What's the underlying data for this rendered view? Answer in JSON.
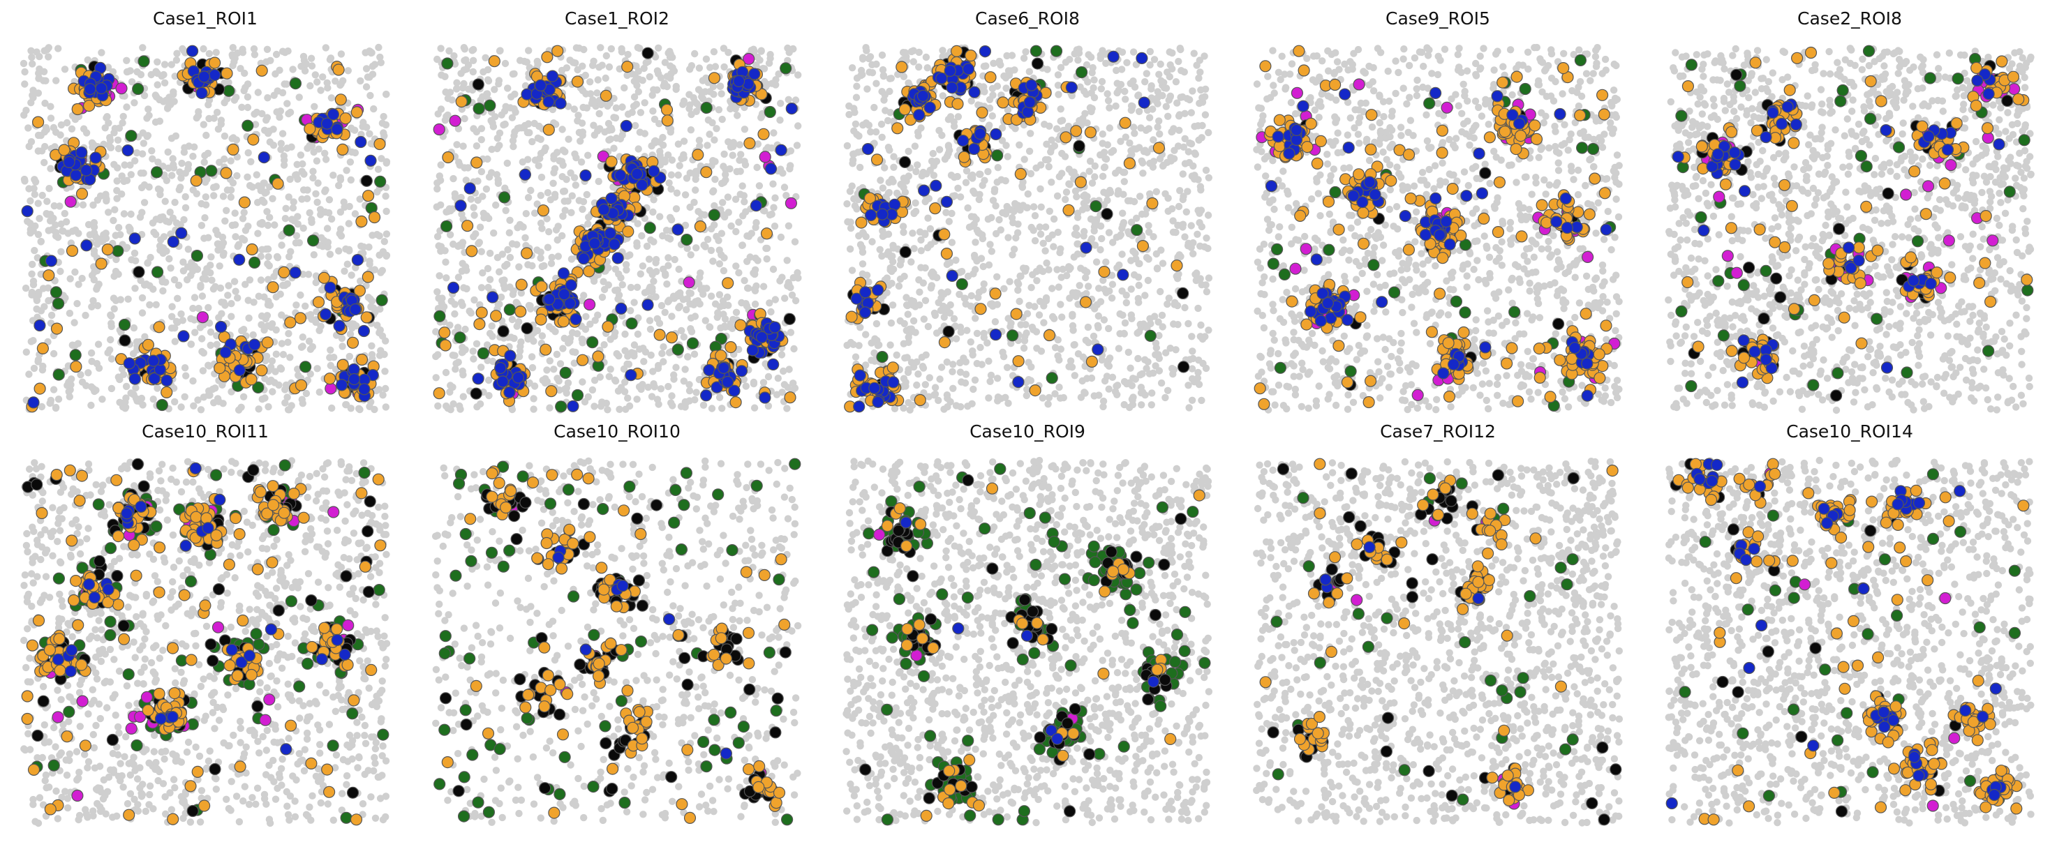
{
  "chart_data": [
    {
      "type": "scatter",
      "title": "Case1_ROI1",
      "seed": 11,
      "density": {
        "bg": 1400,
        "orange": 220,
        "blue": 110,
        "black": 45,
        "green": 40,
        "magenta": 25
      },
      "pattern": "bands-top-bottom"
    },
    {
      "type": "scatter",
      "title": "Case1_ROI2",
      "seed": 23,
      "density": {
        "bg": 1500,
        "orange": 240,
        "blue": 180,
        "black": 70,
        "green": 35,
        "magenta": 25
      },
      "pattern": "diagonal"
    },
    {
      "type": "scatter",
      "title": "Case6_ROI8",
      "seed": 37,
      "density": {
        "bg": 1500,
        "orange": 170,
        "blue": 90,
        "black": 45,
        "green": 15,
        "magenta": 0
      },
      "pattern": "top-left"
    },
    {
      "type": "scatter",
      "title": "Case9_ROI5",
      "seed": 41,
      "density": {
        "bg": 1300,
        "orange": 330,
        "blue": 90,
        "black": 35,
        "green": 30,
        "magenta": 70
      },
      "pattern": "clusters"
    },
    {
      "type": "scatter",
      "title": "Case2_ROI8",
      "seed": 53,
      "density": {
        "bg": 1600,
        "orange": 170,
        "blue": 50,
        "black": 55,
        "green": 40,
        "magenta": 60
      },
      "pattern": "sparse"
    },
    {
      "type": "scatter",
      "title": "Case10_ROI11",
      "seed": 61,
      "density": {
        "bg": 1300,
        "orange": 230,
        "blue": 30,
        "black": 130,
        "green": 160,
        "magenta": 40
      },
      "pattern": "top-dense"
    },
    {
      "type": "scatter",
      "title": "Case10_ROI10",
      "seed": 71,
      "density": {
        "bg": 700,
        "orange": 120,
        "blue": 8,
        "black": 120,
        "green": 70,
        "magenta": 6
      },
      "pattern": "left-diag"
    },
    {
      "type": "scatter",
      "title": "Case10_ROI9",
      "seed": 83,
      "density": {
        "bg": 1500,
        "orange": 40,
        "blue": 6,
        "black": 90,
        "green": 220,
        "magenta": 3
      },
      "pattern": "green-right"
    },
    {
      "type": "scatter",
      "title": "Case7_ROI12",
      "seed": 97,
      "density": {
        "bg": 1500,
        "orange": 90,
        "blue": 6,
        "black": 80,
        "green": 30,
        "magenta": 12
      },
      "pattern": "top-mid"
    },
    {
      "type": "scatter",
      "title": "Case10_ROI14",
      "seed": 101,
      "density": {
        "bg": 1500,
        "orange": 210,
        "blue": 50,
        "black": 30,
        "green": 30,
        "magenta": 6
      },
      "pattern": "top-band"
    }
  ],
  "colors": {
    "background_cells": "#cfcfcf",
    "orange": "#f0a32c",
    "blue": "#1428c8",
    "black": "#0a0a0a",
    "green": "#1e6e1e",
    "magenta": "#d21ed2",
    "edge": "#555555"
  }
}
